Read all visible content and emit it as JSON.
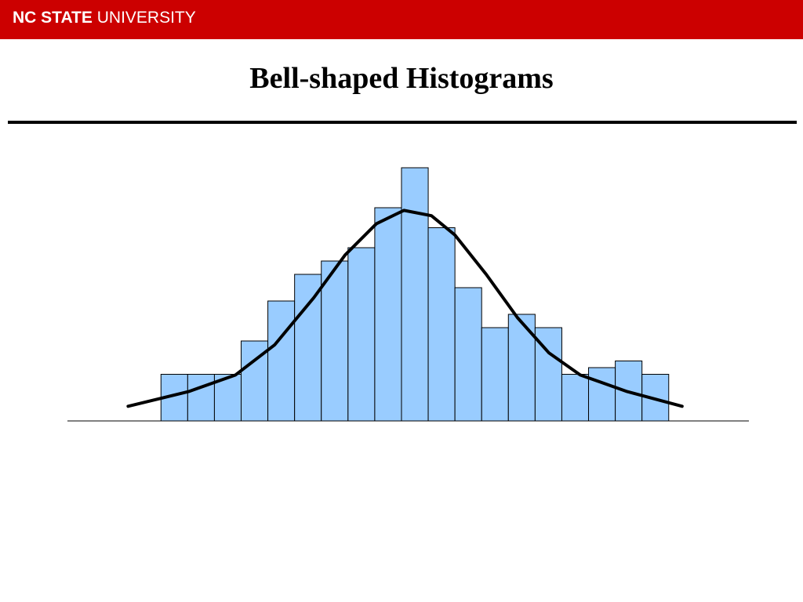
{
  "header": {
    "brand": "NC STATE",
    "subbrand": "UNIVERSITY"
  },
  "chart_data": {
    "type": "histogram",
    "title": "Bell-shaped Histograms",
    "bins": [
      0,
      1,
      2,
      3,
      4,
      5,
      6,
      7,
      8,
      9,
      10,
      11,
      12,
      13,
      14,
      15,
      16,
      17,
      18,
      19
    ],
    "values": [
      7,
      7,
      7,
      12,
      18,
      22,
      24,
      26,
      32,
      38,
      29,
      20,
      14,
      16,
      14,
      7,
      8,
      9,
      7
    ],
    "color": "#99ccff",
    "edge_color": "#000000",
    "xlim": [
      -3.5,
      22
    ],
    "ylim": [
      0,
      40
    ],
    "curve": {
      "color": "#000000",
      "x": [
        -1.23,
        1.03,
        2.79,
        4.25,
        5.72,
        6.89,
        8.06,
        9.09,
        10.12,
        11.0,
        12.17,
        13.34,
        14.52,
        15.69,
        17.45,
        19.5
      ],
      "y": [
        2.2,
        4.4,
        6.9,
        11.4,
        18.5,
        24.9,
        29.6,
        31.6,
        30.8,
        27.9,
        22,
        15.5,
        10.2,
        6.9,
        4.4,
        2.2
      ]
    }
  }
}
